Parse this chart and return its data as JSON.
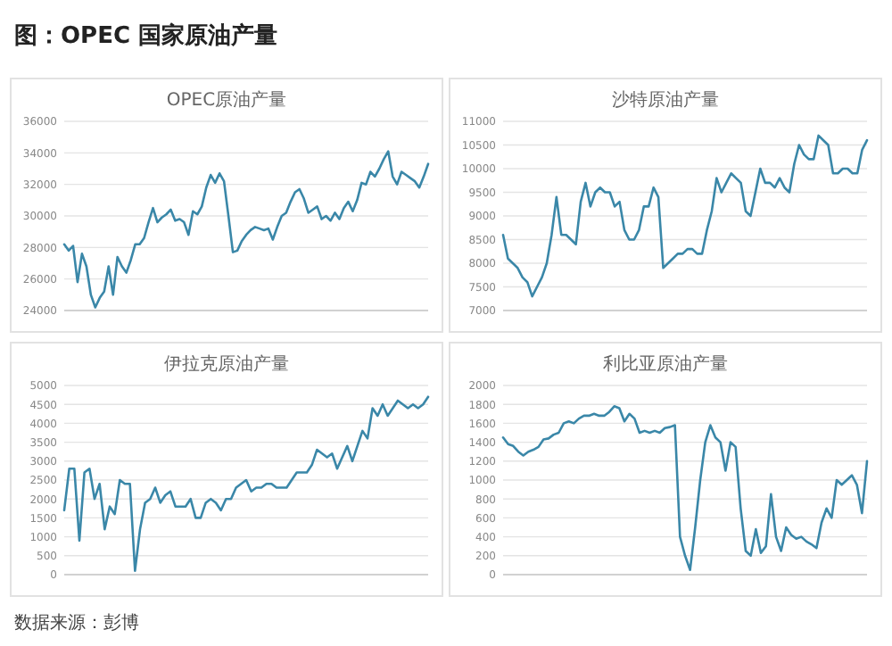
{
  "chart_data": [
    {
      "type": "line",
      "title": "OPEC原油产量",
      "annotations": [
        "图：OPEC 国家原油产量"
      ],
      "color": "#3a87a8",
      "ylim": [
        24000,
        36000
      ],
      "yticks": [
        24000,
        26000,
        28000,
        30000,
        32000,
        34000,
        36000
      ],
      "grid": "y",
      "categories": [
        null,
        null,
        null,
        null,
        null,
        null,
        null,
        null,
        null,
        null,
        null,
        null,
        null,
        null,
        null,
        null,
        null,
        null,
        null,
        null,
        null,
        null,
        null,
        null,
        null,
        null,
        null,
        null,
        null,
        null,
        null,
        null,
        null,
        null,
        null,
        null,
        null,
        null,
        null,
        null,
        null,
        null,
        null,
        null,
        null,
        null,
        null,
        null,
        null,
        null,
        null,
        null,
        null,
        null,
        null,
        null,
        null,
        null,
        null,
        null,
        null,
        null,
        null,
        null,
        null,
        null,
        null,
        null,
        null,
        null,
        null,
        null,
        null,
        null,
        null,
        null,
        null,
        null,
        null,
        null,
        null,
        null,
        null
      ],
      "values": [
        28200,
        27800,
        28100,
        25800,
        27600,
        26800,
        25000,
        24200,
        24800,
        25200,
        26800,
        25000,
        27400,
        26800,
        26400,
        27200,
        28200,
        28200,
        28600,
        29600,
        30500,
        29600,
        29900,
        30100,
        30400,
        29700,
        29800,
        29600,
        28800,
        30300,
        30100,
        30600,
        31800,
        32600,
        32100,
        32700,
        32200,
        30000,
        27700,
        27800,
        28400,
        28800,
        29100,
        29300,
        29200,
        29100,
        29200,
        28500,
        29300,
        30000,
        30200,
        30900,
        31500,
        31700,
        31100,
        30200,
        30400,
        30600,
        29800,
        30000,
        29700,
        30200,
        29800,
        30500,
        30900,
        30300,
        31000,
        32100,
        32000,
        32800,
        32500,
        33000,
        33600,
        34100,
        32500,
        32000,
        32800,
        32600,
        32400,
        32200,
        31800,
        32500,
        33300
      ]
    },
    {
      "type": "line",
      "title": "沙特原油产量",
      "color": "#3a87a8",
      "ylim": [
        7000,
        11000
      ],
      "yticks": [
        7000,
        7500,
        8000,
        8500,
        9000,
        9500,
        10000,
        10500,
        11000
      ],
      "grid": "y",
      "categories": [
        null,
        null,
        null,
        null,
        null,
        null,
        null,
        null,
        null,
        null,
        null,
        null,
        null,
        null,
        null,
        null,
        null,
        null,
        null,
        null,
        null,
        null,
        null,
        null,
        null,
        null,
        null,
        null,
        null,
        null,
        null,
        null,
        null,
        null,
        null,
        null,
        null,
        null,
        null,
        null,
        null,
        null,
        null,
        null,
        null,
        null,
        null,
        null,
        null,
        null,
        null,
        null,
        null,
        null,
        null,
        null,
        null,
        null,
        null,
        null,
        null,
        null,
        null,
        null,
        null,
        null,
        null,
        null,
        null,
        null,
        null,
        null,
        null,
        null,
        null,
        null
      ],
      "values": [
        8600,
        8100,
        8000,
        7900,
        7700,
        7600,
        7300,
        7500,
        7700,
        8000,
        8600,
        9400,
        8600,
        8600,
        8500,
        8400,
        9300,
        9700,
        9200,
        9500,
        9600,
        9500,
        9500,
        9200,
        9300,
        8700,
        8500,
        8500,
        8700,
        9200,
        9200,
        9600,
        9400,
        7900,
        8000,
        8100,
        8200,
        8200,
        8300,
        8300,
        8200,
        8200,
        8700,
        9100,
        9800,
        9500,
        9700,
        9900,
        9800,
        9700,
        9100,
        9000,
        9500,
        10000,
        9700,
        9700,
        9600,
        9800,
        9600,
        9500,
        10100,
        10500,
        10300,
        10200,
        10200,
        10700,
        10600,
        10500,
        9900,
        9900,
        10000,
        10000,
        9900,
        9900,
        10400,
        10600
      ]
    },
    {
      "type": "line",
      "title": "伊拉克原油产量",
      "annotations": [
        "数据来源：彭博"
      ],
      "color": "#3a87a8",
      "ylim": [
        0,
        5000
      ],
      "yticks": [
        0,
        500,
        1000,
        1500,
        2000,
        2500,
        3000,
        3500,
        4000,
        4500,
        5000
      ],
      "grid": "y",
      "categories": [
        null,
        null,
        null,
        null,
        null,
        null,
        null,
        null,
        null,
        null,
        null,
        null,
        null,
        null,
        null,
        null,
        null,
        null,
        null,
        null,
        null,
        null,
        null,
        null,
        null,
        null,
        null,
        null,
        null,
        null,
        null,
        null,
        null,
        null,
        null,
        null,
        null,
        null,
        null,
        null,
        null,
        null,
        null,
        null,
        null,
        null,
        null,
        null,
        null,
        null,
        null,
        null,
        null,
        null,
        null,
        null,
        null,
        null,
        null,
        null,
        null,
        null,
        null,
        null,
        null,
        null,
        null,
        null,
        null,
        null,
        null,
        null,
        null
      ],
      "values": [
        1700,
        2800,
        2800,
        900,
        2700,
        2800,
        2000,
        2400,
        1200,
        1800,
        1600,
        2500,
        2400,
        2400,
        100,
        1200,
        1900,
        2000,
        2300,
        1900,
        2100,
        2200,
        1800,
        1800,
        1800,
        2000,
        1500,
        1500,
        1900,
        2000,
        1900,
        1700,
        2000,
        2000,
        2300,
        2400,
        2500,
        2200,
        2300,
        2300,
        2400,
        2400,
        2300,
        2300,
        2300,
        2500,
        2700,
        2700,
        2700,
        2900,
        3300,
        3200,
        3100,
        3200,
        2800,
        3100,
        3400,
        3000,
        3400,
        3800,
        3600,
        4400,
        4200,
        4500,
        4200,
        4400,
        4600,
        4500,
        4400,
        4500,
        4400,
        4500,
        4700
      ]
    },
    {
      "type": "line",
      "title": "利比亚原油产量",
      "color": "#3a87a8",
      "ylim": [
        0,
        2000
      ],
      "yticks": [
        0,
        200,
        400,
        600,
        800,
        1000,
        1200,
        1400,
        1600,
        1800,
        2000
      ],
      "grid": "y",
      "categories": [
        null,
        null,
        null,
        null,
        null,
        null,
        null,
        null,
        null,
        null,
        null,
        null,
        null,
        null,
        null,
        null,
        null,
        null,
        null,
        null,
        null,
        null,
        null,
        null,
        null,
        null,
        null,
        null,
        null,
        null,
        null,
        null,
        null,
        null,
        null,
        null,
        null,
        null,
        null,
        null,
        null,
        null,
        null,
        null,
        null,
        null,
        null,
        null,
        null,
        null,
        null,
        null,
        null,
        null,
        null,
        null,
        null,
        null,
        null,
        null,
        null,
        null,
        null,
        null,
        null,
        null,
        null,
        null,
        null,
        null,
        null,
        null,
        null
      ],
      "values": [
        1450,
        1380,
        1360,
        1300,
        1260,
        1300,
        1320,
        1350,
        1430,
        1440,
        1480,
        1500,
        1600,
        1620,
        1600,
        1650,
        1680,
        1680,
        1700,
        1680,
        1680,
        1720,
        1780,
        1760,
        1620,
        1700,
        1650,
        1500,
        1520,
        1500,
        1520,
        1500,
        1550,
        1560,
        1580,
        400,
        200,
        50,
        500,
        1000,
        1400,
        1580,
        1450,
        1400,
        1100,
        1400,
        1350,
        700,
        250,
        200,
        480,
        230,
        300,
        850,
        400,
        250,
        500,
        420,
        380,
        400,
        350,
        320,
        280,
        550,
        700,
        600,
        1000,
        950,
        1000,
        1050,
        950,
        650,
        1200
      ]
    }
  ]
}
